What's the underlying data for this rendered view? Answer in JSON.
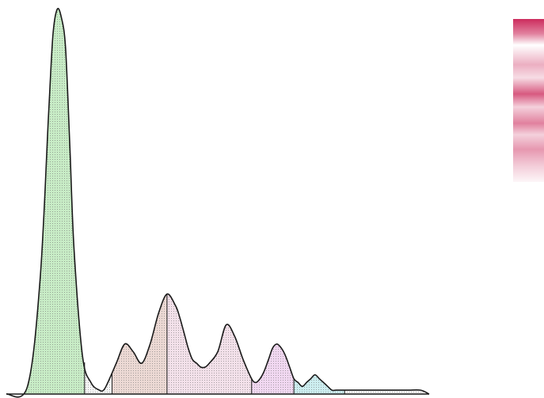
{
  "chart_data": {
    "type": "area",
    "title": "",
    "xlabel": "",
    "ylabel": "",
    "xlim": [
      0,
      100
    ],
    "ylim": [
      0,
      100
    ],
    "grid": false,
    "legend": "none",
    "curve": {
      "x": [
        0,
        5,
        8,
        10,
        11,
        12,
        13,
        14,
        15,
        16,
        18,
        20,
        22,
        23,
        24,
        26,
        28,
        30,
        32,
        34,
        36,
        38,
        40,
        41,
        42,
        43,
        44,
        45,
        46,
        47,
        48,
        50,
        52,
        54,
        56,
        58,
        59,
        60,
        61,
        62,
        63,
        64,
        65,
        66,
        67,
        68,
        69,
        70,
        71,
        72,
        73,
        74,
        75,
        76,
        77,
        78,
        80,
        82,
        84,
        86,
        88,
        90,
        92,
        95,
        98,
        100
      ],
      "y": [
        0,
        2,
        30,
        73,
        93,
        100,
        98,
        90,
        65,
        38,
        10,
        3,
        1,
        1,
        3,
        8,
        13,
        11,
        8,
        13,
        21,
        26,
        23,
        20,
        16,
        12,
        9,
        8,
        7,
        7,
        8,
        11,
        18,
        15,
        9,
        4,
        3,
        4,
        6,
        9,
        12,
        13,
        12,
        10,
        7,
        4,
        3,
        2,
        3,
        4,
        5,
        4,
        3,
        2,
        1,
        1,
        1,
        1,
        1,
        1,
        1,
        1,
        1,
        1,
        1,
        0
      ]
    },
    "fractions": [
      {
        "from": 0,
        "to": 18.5,
        "color": "#c8ecc6"
      },
      {
        "from": 18.5,
        "to": 25,
        "color": "#f5f5f5"
      },
      {
        "from": 25,
        "to": 38,
        "color": "#ecd9d4"
      },
      {
        "from": 38,
        "to": 58,
        "color": "#f3e1ea"
      },
      {
        "from": 58,
        "to": 68,
        "color": "#f1d8f1"
      },
      {
        "from": 68,
        "to": 80,
        "color": "#cdeef0"
      },
      {
        "from": 80,
        "to": 100,
        "color": "#f5f5f5"
      }
    ],
    "dividers_x": [
      18.5,
      25,
      38,
      58,
      68,
      80
    ],
    "band_strip": {
      "stops": [
        {
          "pos": 0,
          "intensity": 0.92
        },
        {
          "pos": 0.09,
          "intensity": 0.55
        },
        {
          "pos": 0.16,
          "intensity": 0.0
        },
        {
          "pos": 0.28,
          "intensity": 0.35
        },
        {
          "pos": 0.36,
          "intensity": 0.15
        },
        {
          "pos": 0.46,
          "intensity": 0.72
        },
        {
          "pos": 0.54,
          "intensity": 0.2
        },
        {
          "pos": 0.64,
          "intensity": 0.55
        },
        {
          "pos": 0.71,
          "intensity": 0.2
        },
        {
          "pos": 0.8,
          "intensity": 0.45
        },
        {
          "pos": 0.9,
          "intensity": 0.22
        },
        {
          "pos": 1,
          "intensity": 0.04
        }
      ],
      "color": "#c8194f"
    }
  }
}
